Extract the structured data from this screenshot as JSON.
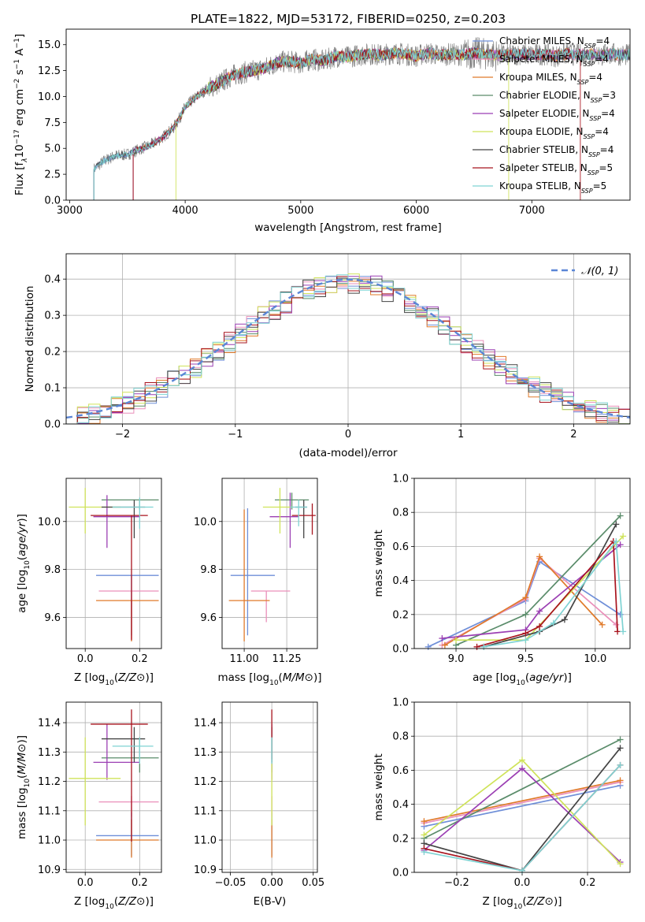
{
  "figure": {
    "title": "PLATE=1822, MJD=53172, FIBERID=0250, z=0.203",
    "colors": {
      "chabrier_miles": "#6f8fd8",
      "salpeter_miles": "#ea8fba",
      "kroupa_miles": "#e07a2a",
      "chabrier_elodie": "#5a8c6a",
      "salpeter_elodie": "#9b3fb3",
      "kroupa_elodie": "#cfe35a",
      "chabrier_stelib": "#444444",
      "salpeter_stelib": "#a8141e",
      "kroupa_stelib": "#7fd3d3",
      "data": "#808080",
      "gaussian": "#5b86d6",
      "grid": "#b0b0b0"
    }
  },
  "chart_data": [
    {
      "id": "spectrum",
      "type": "line",
      "title": "PLATE=1822, MJD=53172, FIBERID=0250, z=0.203",
      "xlabel": "wavelength [Angstrom, rest frame]",
      "ylabel_parts": [
        "Flux [f",
        "λ",
        "10",
        "−17",
        " erg cm",
        "−2",
        " s",
        "−1",
        " A",
        "−1",
        "]"
      ],
      "xlim": [
        2970,
        7850
      ],
      "ylim": [
        0,
        16.5
      ],
      "xticks": [
        "3000",
        "4000",
        "5000",
        "6000",
        "7000"
      ],
      "yticks": [
        "0.0",
        "2.5",
        "5.0",
        "7.5",
        "10.0",
        "12.5",
        "15.0"
      ],
      "legend_position": "right",
      "legend": [
        {
          "label": "Chabrier MILES, N",
          "sub": "SSP",
          "n": "=4",
          "color": "#6f8fd8"
        },
        {
          "label": "Salpeter MILES, N",
          "sub": "SSP",
          "n": "=4",
          "color": "#ea8fba"
        },
        {
          "label": "Kroupa MILES, N",
          "sub": "SSP",
          "n": "=4",
          "color": "#e07a2a"
        },
        {
          "label": "Chabrier ELODIE, N",
          "sub": "SSP",
          "n": "=3",
          "color": "#5a8c6a"
        },
        {
          "label": "Salpeter ELODIE, N",
          "sub": "SSP",
          "n": "=4",
          "color": "#9b3fb3"
        },
        {
          "label": "Kroupa ELODIE, N",
          "sub": "SSP",
          "n": "=4",
          "color": "#cfe35a"
        },
        {
          "label": "Chabrier STELIB, N",
          "sub": "SSP",
          "n": "=4",
          "color": "#444444"
        },
        {
          "label": "Salpeter STELIB, N",
          "sub": "SSP",
          "n": "=5",
          "color": "#a8141e"
        },
        {
          "label": "Kroupa STELIB, N",
          "sub": "SSP",
          "n": "=5",
          "color": "#7fd3d3"
        }
      ],
      "spectrum_envelope": {
        "x": [
          3210,
          3300,
          3400,
          3500,
          3600,
          3700,
          3800,
          3900,
          3950,
          4000,
          4100,
          4200,
          4300,
          4400,
          4500,
          4600,
          4700,
          4800,
          4900,
          5000,
          5100,
          5200,
          5300,
          5400,
          5500,
          5600,
          5700,
          5800,
          5900,
          6000,
          6100,
          6200,
          6300,
          6400,
          6500,
          6600,
          6700,
          6800,
          6900,
          7000,
          7100,
          7200,
          7300,
          7400,
          7500,
          7600,
          7700,
          7800
        ],
        "y": [
          3.0,
          3.8,
          4.3,
          4.4,
          4.9,
          5.3,
          6.0,
          7.0,
          7.9,
          9.0,
          10.0,
          10.8,
          11.3,
          12.0,
          12.3,
          12.5,
          12.8,
          13.3,
          13.4,
          13.2,
          13.6,
          13.4,
          13.9,
          13.8,
          14.0,
          14.1,
          14.0,
          14.2,
          14.1,
          13.9,
          14.2,
          14.0,
          14.1,
          14.0,
          14.2,
          14.1,
          14.0,
          14.0,
          14.1,
          14.0,
          14.1,
          13.9,
          14.1,
          14.0,
          14.1,
          14.0,
          14.1,
          14.0
        ]
      },
      "model_start_wavelength": [
        3210,
        3550,
        3550,
        3550,
        3550,
        3920,
        3210,
        3550,
        3210
      ],
      "model_end_wavelength": [
        7850,
        7850,
        7850,
        7850,
        7850,
        6800,
        7850,
        7420,
        7850
      ]
    },
    {
      "id": "residual-histogram",
      "type": "bar",
      "xlabel": "(data-model)/error",
      "ylabel": "Normed distribution",
      "xlim": [
        -2.5,
        2.5
      ],
      "ylim": [
        0,
        0.47
      ],
      "xticks": [
        "−2",
        "−1",
        "0",
        "1",
        "2"
      ],
      "yticks": [
        "0.0",
        "0.1",
        "0.2",
        "0.3",
        "0.4"
      ],
      "legend_position": "top-right",
      "legend": [
        {
          "label": "𝒩(0, 1)",
          "color": "#5b86d6",
          "style": "dashed"
        }
      ],
      "bin_width": 0.1,
      "bin_start": -2.5,
      "gaussian": {
        "mean": 0,
        "sigma": 1
      }
    },
    {
      "id": "age-vs-Z",
      "type": "scatter",
      "xlabel": "Z [log10(Z/Z⊙)]",
      "ylabel": "age  [log10(age/yr)]",
      "xlim": [
        -0.07,
        0.28
      ],
      "ylim": [
        9.47,
        10.18
      ],
      "xticks": [
        "0.0",
        "0.2"
      ],
      "yticks": [
        "9.6",
        "9.8",
        "10.0"
      ],
      "points": [
        {
          "x": 0.17,
          "y": 9.775,
          "xerr": [
            0.13,
            0.1
          ],
          "yerr": [
            0.25,
            0
          ],
          "color": "#6f8fd8"
        },
        {
          "x": 0.17,
          "y": 9.71,
          "xerr": [
            0.12,
            0.1
          ],
          "yerr": [
            0.2,
            0
          ],
          "color": "#ea8fba"
        },
        {
          "x": 0.17,
          "y": 9.67,
          "xerr": [
            0.13,
            0.1
          ],
          "yerr": [
            0.17,
            0
          ],
          "color": "#e07a2a"
        },
        {
          "x": 0.2,
          "y": 10.09,
          "xerr": [
            0.14,
            0.07
          ],
          "yerr": [
            0.04,
            0
          ],
          "color": "#5a8c6a"
        },
        {
          "x": 0.08,
          "y": 10.02,
          "xerr": [
            0.05,
            0.12
          ],
          "yerr": [
            0.13,
            0.09
          ],
          "color": "#9b3fb3"
        },
        {
          "x": 0.0,
          "y": 10.06,
          "xerr": [
            0.06,
            0.13
          ],
          "yerr": [
            0.11,
            0.08
          ],
          "color": "#cfe35a"
        },
        {
          "x": 0.18,
          "y": 10.06,
          "xerr": [
            0.12,
            0.04
          ],
          "yerr": [
            0.13,
            0.03
          ],
          "color": "#444444"
        },
        {
          "x": 0.17,
          "y": 10.025,
          "xerr": [
            0.15,
            0.06
          ],
          "yerr": [
            0.52,
            0
          ],
          "color": "#a8141e"
        },
        {
          "x": 0.2,
          "y": 10.06,
          "xerr": [
            0.1,
            0.05
          ],
          "yerr": [
            0.09,
            0.04
          ],
          "color": "#7fd3d3"
        }
      ]
    },
    {
      "id": "age-vs-mass",
      "type": "scatter",
      "xlabel": "mass [log10(M/M⊙)]",
      "ylabel": "",
      "xlim": [
        10.87,
        11.43
      ],
      "ylim": [
        9.47,
        10.18
      ],
      "xticks": [
        "11.00",
        "11.25"
      ],
      "yticks": [
        "9.6",
        "9.8",
        "10.0"
      ],
      "points": [
        {
          "x": 11.02,
          "y": 9.775,
          "xerr": [
            0.1,
            0.16
          ],
          "yerr": [
            0.25,
            0.28
          ],
          "color": "#6f8fd8"
        },
        {
          "x": 11.13,
          "y": 9.71,
          "xerr": [
            0.09,
            0.14
          ],
          "yerr": [
            0.13,
            0
          ],
          "color": "#ea8fba"
        },
        {
          "x": 11.0,
          "y": 9.67,
          "xerr": [
            0.09,
            0.15
          ],
          "yerr": [
            0.17,
            0.38
          ],
          "color": "#e07a2a"
        },
        {
          "x": 11.28,
          "y": 10.09,
          "xerr": [
            0.1,
            0.1
          ],
          "yerr": [
            0.04,
            0.03
          ],
          "color": "#5a8c6a"
        },
        {
          "x": 11.27,
          "y": 10.02,
          "xerr": [
            0.12,
            0.05
          ],
          "yerr": [
            0.13,
            0.1
          ],
          "color": "#9b3fb3"
        },
        {
          "x": 11.21,
          "y": 10.06,
          "xerr": [
            0.1,
            0.08
          ],
          "yerr": [
            0.11,
            0.08
          ],
          "color": "#cfe35a"
        },
        {
          "x": 11.35,
          "y": 10.06,
          "xerr": [
            0.05,
            0.02
          ],
          "yerr": [
            0.13,
            0.03
          ],
          "color": "#444444"
        },
        {
          "x": 11.4,
          "y": 10.025,
          "xerr": [
            0.12,
            0.02
          ],
          "yerr": [
            0.08,
            0.05
          ],
          "color": "#a8141e"
        },
        {
          "x": 11.32,
          "y": 10.06,
          "xerr": [
            0.05,
            0.05
          ],
          "yerr": [
            0.08,
            0.03
          ],
          "color": "#7fd3d3"
        }
      ]
    },
    {
      "id": "mass-weight-vs-age",
      "type": "line",
      "xlabel": "age  [log10(age/yr)]",
      "ylabel": "mass weight",
      "xlim": [
        8.7,
        10.25
      ],
      "ylim": [
        0,
        1.0
      ],
      "xticks": [
        "9.0",
        "9.5",
        "10.0"
      ],
      "yticks": [
        "0.0",
        "0.2",
        "0.4",
        "0.6",
        "0.8",
        "1.0"
      ],
      "series": [
        {
          "color": "#6f8fd8",
          "x": [
            8.8,
            9.5,
            9.6,
            10.18
          ],
          "y": [
            0.01,
            0.28,
            0.51,
            0.2
          ]
        },
        {
          "color": "#ea8fba",
          "x": [
            8.9,
            9.5,
            9.6,
            10.15
          ],
          "y": [
            0.02,
            0.29,
            0.53,
            0.14
          ]
        },
        {
          "color": "#e07a2a",
          "x": [
            8.92,
            9.5,
            9.6,
            10.05
          ],
          "y": [
            0.02,
            0.3,
            0.54,
            0.14
          ]
        },
        {
          "color": "#5a8c6a",
          "x": [
            9.0,
            9.5,
            10.18
          ],
          "y": [
            0.02,
            0.2,
            0.78
          ]
        },
        {
          "color": "#9b3fb3",
          "x": [
            8.9,
            9.5,
            9.6,
            10.18
          ],
          "y": [
            0.06,
            0.11,
            0.22,
            0.61
          ]
        },
        {
          "color": "#cfe35a",
          "x": [
            9.0,
            9.5,
            10.2
          ],
          "y": [
            0.05,
            0.05,
            0.66
          ]
        },
        {
          "color": "#444444",
          "x": [
            9.2,
            9.6,
            9.78,
            10.15
          ],
          "y": [
            0.01,
            0.1,
            0.17,
            0.73
          ]
        },
        {
          "color": "#a8141e",
          "x": [
            9.15,
            9.5,
            9.6,
            10.13,
            10.16
          ],
          "y": [
            0.01,
            0.09,
            0.13,
            0.63,
            0.1
          ]
        },
        {
          "color": "#7fd3d3",
          "x": [
            9.2,
            9.5,
            9.7,
            10.15,
            10.2
          ],
          "y": [
            0.01,
            0.05,
            0.15,
            0.63,
            0.1
          ]
        }
      ]
    },
    {
      "id": "mass-vs-Z",
      "type": "scatter",
      "xlabel": "Z [log10(Z/Z⊙)]",
      "ylabel": "mass [log10(M/M⊙)]",
      "xlim": [
        -0.07,
        0.28
      ],
      "ylim": [
        10.89,
        11.47
      ],
      "xticks": [
        "0.0",
        "0.2"
      ],
      "yticks": [
        "10.9",
        "11.0",
        "11.1",
        "11.2",
        "11.3",
        "11.4"
      ],
      "points": [
        {
          "x": 0.17,
          "y": 11.015,
          "xerr": [
            0.13,
            0.1
          ],
          "yerr": [
            0.07,
            0.08
          ],
          "color": "#6f8fd8"
        },
        {
          "x": 0.17,
          "y": 11.13,
          "xerr": [
            0.12,
            0.1
          ],
          "yerr": [
            0.05,
            0.02
          ],
          "color": "#ea8fba"
        },
        {
          "x": 0.17,
          "y": 11.0,
          "xerr": [
            0.13,
            0.1
          ],
          "yerr": [
            0.06,
            0.07
          ],
          "color": "#e07a2a"
        },
        {
          "x": 0.2,
          "y": 11.28,
          "xerr": [
            0.14,
            0.07
          ],
          "yerr": [
            0.05,
            0.07
          ],
          "color": "#5a8c6a"
        },
        {
          "x": 0.08,
          "y": 11.265,
          "xerr": [
            0.05,
            0.12
          ],
          "yerr": [
            0.06,
            0.13
          ],
          "color": "#9b3fb3"
        },
        {
          "x": 0.0,
          "y": 11.21,
          "xerr": [
            0.06,
            0.13
          ],
          "yerr": [
            0.16,
            0.14
          ],
          "color": "#cfe35a"
        },
        {
          "x": 0.18,
          "y": 11.345,
          "xerr": [
            0.12,
            0.04
          ],
          "yerr": [
            0.08,
            0.04
          ],
          "color": "#444444"
        },
        {
          "x": 0.17,
          "y": 11.395,
          "xerr": [
            0.15,
            0.06
          ],
          "yerr": [
            0.4,
            0.05
          ],
          "color": "#a8141e"
        },
        {
          "x": 0.2,
          "y": 11.32,
          "xerr": [
            0.1,
            0.05
          ],
          "yerr": [
            0.06,
            0.03
          ],
          "color": "#7fd3d3"
        }
      ]
    },
    {
      "id": "mass-vs-ebv",
      "type": "scatter",
      "xlabel": "E(B-V)",
      "ylabel": "",
      "xlim": [
        -0.06,
        0.055
      ],
      "ylim": [
        10.89,
        11.47
      ],
      "xticks": [
        "−0.05",
        "0.00",
        "0.05"
      ],
      "yticks": [
        "10.9",
        "11.0",
        "11.1",
        "11.2",
        "11.3",
        "11.4"
      ],
      "points": [
        {
          "x": 0.0,
          "y": 11.015,
          "xerr": [
            0,
            0
          ],
          "yerr": [
            0.07,
            0.08
          ],
          "color": "#6f8fd8"
        },
        {
          "x": 0.0,
          "y": 11.13,
          "xerr": [
            0,
            0
          ],
          "yerr": [
            0.05,
            0.02
          ],
          "color": "#ea8fba"
        },
        {
          "x": 0.0,
          "y": 11.0,
          "xerr": [
            0,
            0
          ],
          "yerr": [
            0.06,
            0.07
          ],
          "color": "#e07a2a"
        },
        {
          "x": 0.0,
          "y": 11.28,
          "xerr": [
            0,
            0
          ],
          "yerr": [
            0.05,
            0.07
          ],
          "color": "#5a8c6a"
        },
        {
          "x": 0.0,
          "y": 11.265,
          "xerr": [
            0,
            0
          ],
          "yerr": [
            0.06,
            0.13
          ],
          "color": "#9b3fb3"
        },
        {
          "x": 0.0,
          "y": 11.21,
          "xerr": [
            0,
            0
          ],
          "yerr": [
            0.16,
            0.14
          ],
          "color": "#cfe35a"
        },
        {
          "x": 0.0,
          "y": 11.345,
          "xerr": [
            0,
            0
          ],
          "yerr": [
            0.08,
            0.04
          ],
          "color": "#444444"
        },
        {
          "x": 0.0,
          "y": 11.395,
          "xerr": [
            0,
            0
          ],
          "yerr": [
            0.12,
            0.05
          ],
          "color": "#a8141e"
        },
        {
          "x": 0.0,
          "y": 11.32,
          "xerr": [
            0,
            0
          ],
          "yerr": [
            0.06,
            0.03
          ],
          "color": "#7fd3d3"
        }
      ]
    },
    {
      "id": "mass-weight-vs-Z",
      "type": "line",
      "xlabel": "Z [log10(Z/Z⊙)]",
      "ylabel": "mass weight",
      "xlim": [
        -0.33,
        0.33
      ],
      "ylim": [
        0,
        1.0
      ],
      "xticks": [
        "−0.2",
        "0.0",
        "0.2"
      ],
      "yticks": [
        "0.0",
        "0.2",
        "0.4",
        "0.6",
        "0.8",
        "1.0"
      ],
      "series": [
        {
          "color": "#6f8fd8",
          "x": [
            -0.3,
            0.3
          ],
          "y": [
            0.27,
            0.51
          ]
        },
        {
          "color": "#ea8fba",
          "x": [
            -0.3,
            0.3
          ],
          "y": [
            0.29,
            0.53
          ]
        },
        {
          "color": "#e07a2a",
          "x": [
            -0.3,
            0.3
          ],
          "y": [
            0.3,
            0.54
          ]
        },
        {
          "color": "#5a8c6a",
          "x": [
            -0.3,
            0.3
          ],
          "y": [
            0.2,
            0.78
          ]
        },
        {
          "color": "#9b3fb3",
          "x": [
            -0.3,
            0.0,
            0.3
          ],
          "y": [
            0.13,
            0.61,
            0.06
          ]
        },
        {
          "color": "#cfe35a",
          "x": [
            -0.3,
            0.0,
            0.3
          ],
          "y": [
            0.22,
            0.66,
            0.05
          ]
        },
        {
          "color": "#444444",
          "x": [
            -0.3,
            0.0,
            0.3
          ],
          "y": [
            0.17,
            0.01,
            0.73
          ]
        },
        {
          "color": "#a8141e",
          "x": [
            -0.3,
            0.0,
            0.3
          ],
          "y": [
            0.14,
            0.01,
            0.63
          ]
        },
        {
          "color": "#7fd3d3",
          "x": [
            -0.3,
            0.0,
            0.3
          ],
          "y": [
            0.12,
            0.01,
            0.63
          ]
        }
      ]
    }
  ]
}
